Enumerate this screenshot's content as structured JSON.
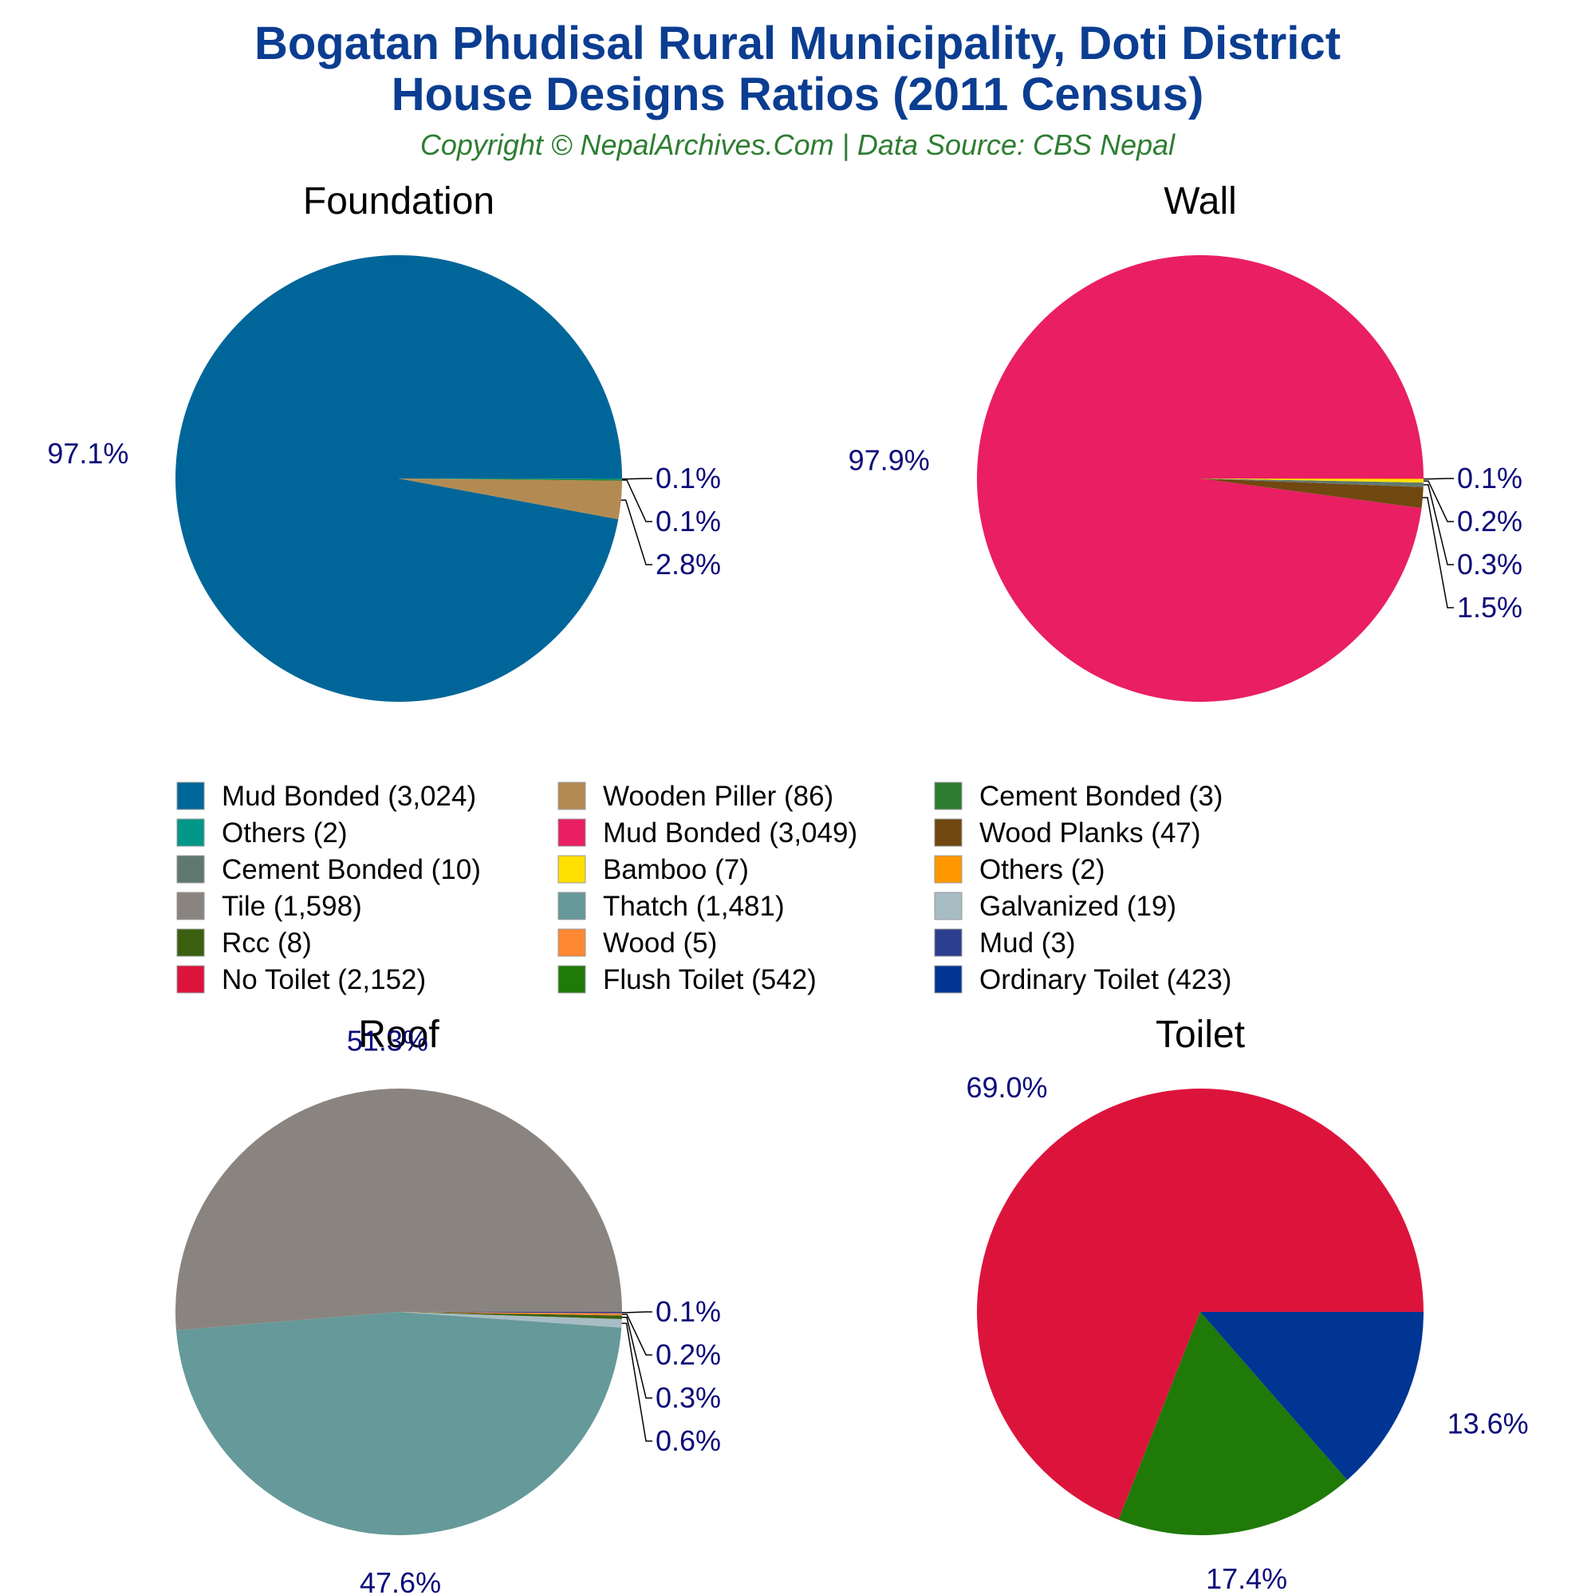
{
  "header": {
    "title_line1": "Bogatan Phudisal Rural Municipality, Doti District",
    "title_line2": "House Designs Ratios (2011 Census)",
    "subtitle": "Copyright © NepalArchives.Com | Data Source: CBS Nepal"
  },
  "colors": {
    "title": "#0b3d91",
    "subtitle": "#2e7d32",
    "label": "#0b0b7a"
  },
  "chart_data": [
    {
      "type": "pie",
      "title": "Foundation",
      "slices": [
        {
          "name": "Mud Bonded",
          "count": "3,024",
          "value": 3024,
          "pct": "97.1%",
          "color": "#006699"
        },
        {
          "name": "Wooden Piller",
          "count": "86",
          "value": 86,
          "pct": "2.8%",
          "color": "#b38b52"
        },
        {
          "name": "Cement Bonded",
          "count": "3",
          "value": 3,
          "pct": "0.1%",
          "color": "#2e7d32"
        },
        {
          "name": "Others",
          "count": "2",
          "value": 2,
          "pct": "0.1%",
          "color": "#009688"
        }
      ]
    },
    {
      "type": "pie",
      "title": "Wall",
      "slices": [
        {
          "name": "Mud Bonded",
          "count": "3,049",
          "value": 3049,
          "pct": "97.9%",
          "color": "#e91e63"
        },
        {
          "name": "Wood Planks",
          "count": "47",
          "value": 47,
          "pct": "1.5%",
          "color": "#704810"
        },
        {
          "name": "Cement Bonded",
          "count": "10",
          "value": 10,
          "pct": "0.3%",
          "color": "#607870"
        },
        {
          "name": "Bamboo",
          "count": "7",
          "value": 7,
          "pct": "0.2%",
          "color": "#ffe000"
        },
        {
          "name": "Others",
          "count": "2",
          "value": 2,
          "pct": "0.1%",
          "color": "#ff9800"
        }
      ]
    },
    {
      "type": "pie",
      "title": "Roof",
      "slices": [
        {
          "name": "Tile",
          "count": "1,598",
          "value": 1598,
          "pct": "51.3%",
          "color": "#8a8480"
        },
        {
          "name": "Thatch",
          "count": "1,481",
          "value": 1481,
          "pct": "47.6%",
          "color": "#669999"
        },
        {
          "name": "Galvanized",
          "count": "19",
          "value": 19,
          "pct": "0.6%",
          "color": "#a8bcc4"
        },
        {
          "name": "Rcc",
          "count": "8",
          "value": 8,
          "pct": "0.3%",
          "color": "#3a6010"
        },
        {
          "name": "Wood",
          "count": "5",
          "value": 5,
          "pct": "0.2%",
          "color": "#ff8833"
        },
        {
          "name": "Mud",
          "count": "3",
          "value": 3,
          "pct": "0.1%",
          "color": "#2c3e90"
        }
      ]
    },
    {
      "type": "pie",
      "title": "Toilet",
      "slices": [
        {
          "name": "No Toilet",
          "count": "2,152",
          "value": 2152,
          "pct": "69.0%",
          "color": "#dc143c"
        },
        {
          "name": "Flush Toilet",
          "count": "542",
          "value": 542,
          "pct": "17.4%",
          "color": "#1f7a08"
        },
        {
          "name": "Ordinary Toilet",
          "count": "423",
          "value": 423,
          "pct": "13.6%",
          "color": "#003594"
        }
      ]
    }
  ],
  "legend": [
    {
      "label": "Mud Bonded (3,024)",
      "color": "#006699"
    },
    {
      "label": "Wooden Piller (86)",
      "color": "#b38b52"
    },
    {
      "label": "Cement Bonded (3)",
      "color": "#2e7d32"
    },
    {
      "label": "Others (2)",
      "color": "#009688"
    },
    {
      "label": "Mud Bonded (3,049)",
      "color": "#e91e63"
    },
    {
      "label": "Wood Planks (47)",
      "color": "#704810"
    },
    {
      "label": "Cement Bonded (10)",
      "color": "#607870"
    },
    {
      "label": "Bamboo (7)",
      "color": "#ffe000"
    },
    {
      "label": "Others (2)",
      "color": "#ff9800"
    },
    {
      "label": "Tile (1,598)",
      "color": "#8a8480"
    },
    {
      "label": "Thatch (1,481)",
      "color": "#669999"
    },
    {
      "label": "Galvanized (19)",
      "color": "#a8bcc4"
    },
    {
      "label": "Rcc (8)",
      "color": "#3a6010"
    },
    {
      "label": "Wood (5)",
      "color": "#ff8833"
    },
    {
      "label": "Mud (3)",
      "color": "#2c3e90"
    },
    {
      "label": "No Toilet (2,152)",
      "color": "#dc143c"
    },
    {
      "label": "Flush Toilet (542)",
      "color": "#1f7a08"
    },
    {
      "label": "Ordinary Toilet (423)",
      "color": "#003594"
    }
  ]
}
